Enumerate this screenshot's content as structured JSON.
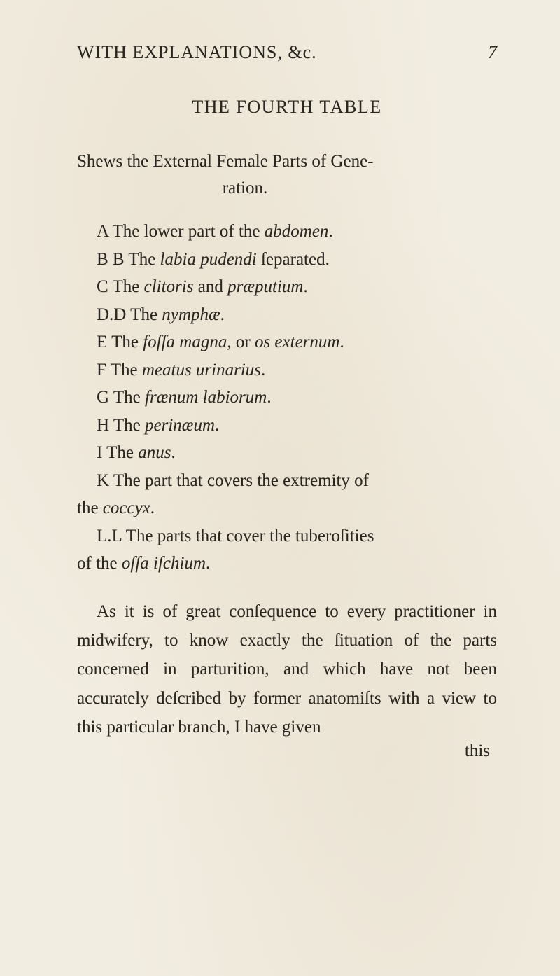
{
  "colors": {
    "paper_bg": "#f2ede1",
    "ink": "#2a2620",
    "foxing1": "rgba(200,180,140,0.15)",
    "foxing2": "rgba(190,170,130,0.12)"
  },
  "typography": {
    "body_fontsize_pt": 25,
    "header_fontsize_pt": 26,
    "line_height": 1.6,
    "font_family": "Georgia / Times-like old-style serif"
  },
  "running_head": {
    "text": "WITH EXPLANATIONS, &c.",
    "page_number": "7"
  },
  "table_title": "THE FOURTH TABLE",
  "shews": {
    "line1": "Shews the External Female Parts of Gene-",
    "line2": "ration."
  },
  "entries": [
    {
      "label": "A",
      "plain_before": "The lower part of the ",
      "italic": "abdomen",
      "plain_after": "."
    },
    {
      "label": "B B",
      "plain_before": "The ",
      "italic": "labia pudendi",
      "plain_after": " ſeparated."
    },
    {
      "label": "C",
      "plain_before": "The ",
      "italic": "clitoris",
      "plain_mid": " and ",
      "italic2": "præputium",
      "plain_after": "."
    },
    {
      "label": "D.D",
      "plain_before": "The ",
      "italic": "nymphæ",
      "plain_after": "."
    },
    {
      "label": "E",
      "plain_before": "The ",
      "italic": "foſſa magna",
      "plain_mid": ", or ",
      "italic2": "os externum",
      "plain_after": "."
    },
    {
      "label": "F",
      "plain_before": "The ",
      "italic": "meatus urinarius",
      "plain_after": "."
    },
    {
      "label": "G",
      "plain_before": "The ",
      "italic": "frænum labiorum",
      "plain_after": "."
    },
    {
      "label": "H",
      "plain_before": "The ",
      "italic": "perinæum",
      "plain_after": "."
    },
    {
      "label": "I",
      "plain_before": "The ",
      "italic": "anus",
      "plain_after": "."
    },
    {
      "label": "K",
      "plain_before": "The part that covers the extremity of",
      "continuation": "the ",
      "italic_cont": "coccyx",
      "cont_after": "."
    },
    {
      "label": "L.L",
      "plain_before": "The parts that cover the tuberoſities",
      "continuation": "of the ",
      "italic_cont": "oſſa iſchium",
      "cont_after": "."
    }
  ],
  "final_paragraph": "As it is of great conſequence to every practitioner in midwifery, to know exactly the ſituation of the parts concerned in parturition, and which have not been accurately deſcribed by former anatomiſts with a view to this particular branch, I have given",
  "catchword": "this"
}
